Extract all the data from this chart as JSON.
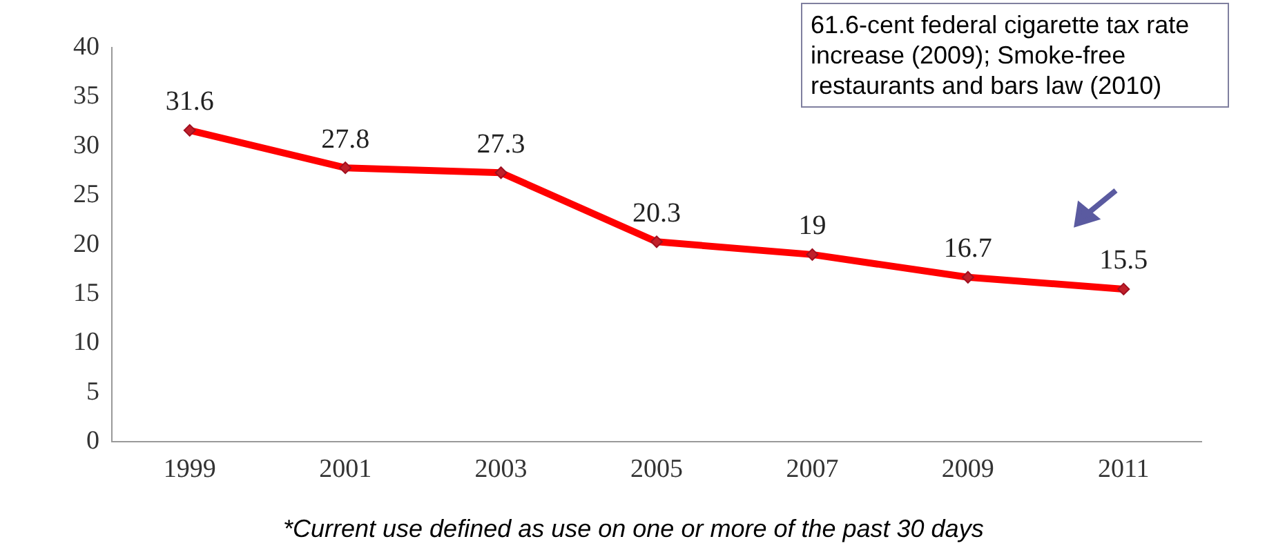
{
  "chart_data": {
    "type": "line",
    "categories": [
      "1999",
      "2001",
      "2003",
      "2005",
      "2007",
      "2009",
      "2011"
    ],
    "series": [
      {
        "color": "#ff0000",
        "values": [
          31.6,
          27.8,
          27.3,
          20.3,
          19,
          16.7,
          15.5
        ]
      }
    ],
    "ylim": [
      0,
      40
    ],
    "yticks": [
      0,
      5,
      10,
      15,
      20,
      25,
      30,
      35,
      40
    ],
    "grid": false,
    "legend": false,
    "marker": "diamond",
    "data_labels": true,
    "annotations": [
      "61.6-cent federal cigarette tax rate increase  (2009); Smoke-free restaurants and bars law (2010)",
      "*Current use defined as use on one or more of the past 30 days"
    ]
  }
}
